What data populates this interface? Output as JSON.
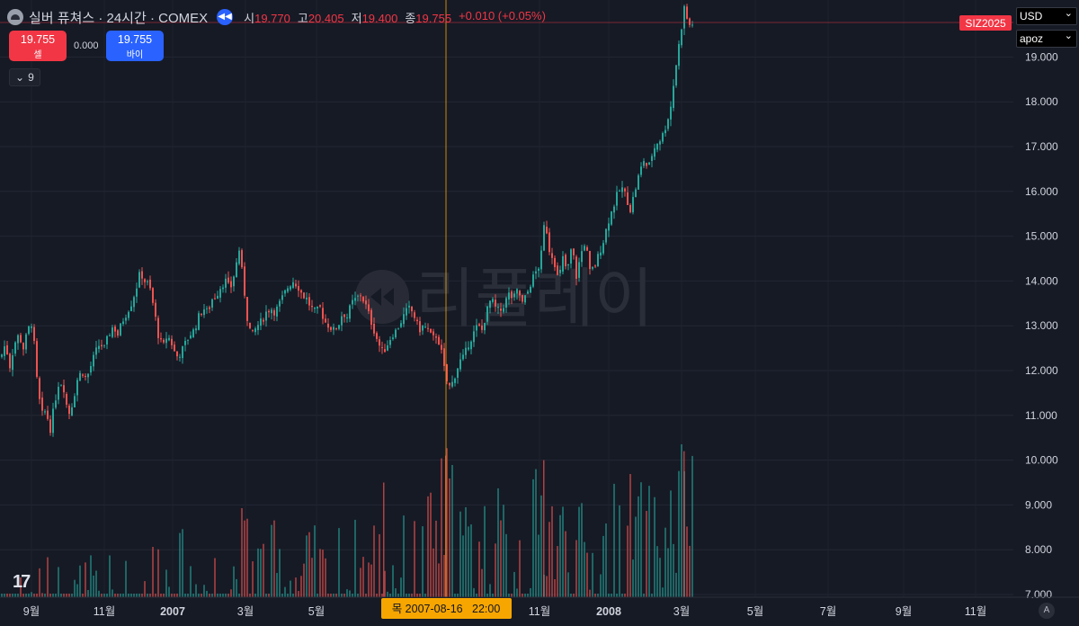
{
  "header": {
    "title": "실버 퓨쳐스 · 24시간 · COMEX",
    "ohlc": [
      {
        "key": "시",
        "value": "19.770"
      },
      {
        "key": "고",
        "value": "20.405"
      },
      {
        "key": "저",
        "value": "19.400"
      },
      {
        "key": "종",
        "value": "19.755"
      }
    ],
    "change": "+0.010 (+0.05%)"
  },
  "trade": {
    "sell_price": "19.755",
    "sell_label": "셀",
    "buy_price": "19.755",
    "buy_label": "바이",
    "spread": "0.000"
  },
  "indicator_toggle": "9",
  "currency_select": "USD",
  "scale_select": "apoz",
  "watermark": "리플레이",
  "auto_button": "A",
  "colors": {
    "up": "#26a69a",
    "down": "#ef5350",
    "bg": "#161a25",
    "crosshair": "#f7a600",
    "accent": "#2962ff"
  },
  "chart_data": {
    "type": "candlestick",
    "y_axis_ticks": [
      "7.000",
      "8.000",
      "9.000",
      "10.000",
      "11.000",
      "12.000",
      "13.000",
      "14.000",
      "15.000",
      "16.000",
      "17.000",
      "18.000",
      "19.000"
    ],
    "ylim": [
      6.8,
      20.3
    ],
    "x_axis_ticks": [
      {
        "label": "9월",
        "bold": false
      },
      {
        "label": "11월",
        "bold": false
      },
      {
        "label": "2007",
        "bold": true
      },
      {
        "label": "3월",
        "bold": false
      },
      {
        "label": "5월",
        "bold": false
      },
      {
        "label": "11월",
        "bold": false
      },
      {
        "label": "2008",
        "bold": true
      },
      {
        "label": "3월",
        "bold": false
      },
      {
        "label": "5월",
        "bold": false
      },
      {
        "label": "7월",
        "bold": false
      },
      {
        "label": "9월",
        "bold": false
      },
      {
        "label": "11월",
        "bold": false
      }
    ],
    "crosshair_date": "목 2007-08-16   22:00",
    "price_tag": "SIZ2025",
    "close_series": [
      [
        0,
        12.3
      ],
      [
        5,
        12.6
      ],
      [
        10,
        12.1
      ],
      [
        15,
        12.6
      ],
      [
        20,
        12.8
      ],
      [
        25,
        12.5
      ],
      [
        30,
        12.9
      ],
      [
        35,
        13.1
      ],
      [
        40,
        11.8
      ],
      [
        45,
        11.0
      ],
      [
        50,
        11.1
      ],
      [
        55,
        10.7
      ],
      [
        60,
        11.3
      ],
      [
        65,
        11.8
      ],
      [
        70,
        11.6
      ],
      [
        75,
        11.0
      ],
      [
        80,
        11.3
      ],
      [
        85,
        11.8
      ],
      [
        90,
        12.0
      ],
      [
        95,
        11.8
      ],
      [
        100,
        12.1
      ],
      [
        105,
        12.4
      ],
      [
        110,
        12.6
      ],
      [
        115,
        12.5
      ],
      [
        120,
        12.8
      ],
      [
        125,
        13.0
      ],
      [
        130,
        12.8
      ],
      [
        135,
        13.1
      ],
      [
        140,
        13.3
      ],
      [
        145,
        13.5
      ],
      [
        150,
        13.8
      ],
      [
        155,
        14.2
      ],
      [
        160,
        14.0
      ],
      [
        165,
        13.9
      ],
      [
        170,
        13.4
      ],
      [
        175,
        12.8
      ],
      [
        180,
        12.5
      ],
      [
        185,
        12.8
      ],
      [
        190,
        12.6
      ],
      [
        195,
        12.3
      ],
      [
        200,
        12.4
      ],
      [
        205,
        12.6
      ],
      [
        210,
        12.8
      ],
      [
        215,
        12.9
      ],
      [
        220,
        13.2
      ],
      [
        225,
        13.4
      ],
      [
        230,
        13.3
      ],
      [
        235,
        13.6
      ],
      [
        240,
        13.7
      ],
      [
        245,
        13.9
      ],
      [
        250,
        14.0
      ],
      [
        255,
        13.8
      ],
      [
        260,
        14.2
      ],
      [
        265,
        14.7
      ],
      [
        270,
        13.9
      ],
      [
        275,
        13.0
      ],
      [
        280,
        12.8
      ],
      [
        285,
        13.0
      ],
      [
        290,
        13.1
      ],
      [
        295,
        13.3
      ],
      [
        300,
        13.4
      ],
      [
        305,
        13.3
      ],
      [
        310,
        13.5
      ],
      [
        315,
        13.7
      ],
      [
        320,
        13.9
      ],
      [
        325,
        14.0
      ],
      [
        330,
        13.9
      ],
      [
        335,
        13.7
      ],
      [
        340,
        13.6
      ],
      [
        345,
        13.4
      ],
      [
        350,
        13.3
      ],
      [
        355,
        13.4
      ],
      [
        360,
        13.1
      ],
      [
        365,
        13.0
      ],
      [
        370,
        12.9
      ],
      [
        375,
        13.0
      ],
      [
        380,
        13.3
      ],
      [
        385,
        13.2
      ],
      [
        390,
        13.5
      ],
      [
        395,
        13.6
      ],
      [
        400,
        13.7
      ],
      [
        405,
        13.5
      ],
      [
        410,
        13.2
      ],
      [
        415,
        12.9
      ],
      [
        420,
        12.6
      ],
      [
        425,
        12.4
      ],
      [
        430,
        12.6
      ],
      [
        435,
        12.8
      ],
      [
        440,
        12.9
      ],
      [
        445,
        13.1
      ],
      [
        450,
        13.3
      ],
      [
        455,
        13.4
      ],
      [
        460,
        13.2
      ],
      [
        465,
        12.9
      ],
      [
        470,
        13.0
      ],
      [
        475,
        12.9
      ],
      [
        480,
        12.7
      ],
      [
        485,
        12.8
      ],
      [
        490,
        12.4
      ],
      [
        495,
        11.8
      ],
      [
        500,
        11.6
      ],
      [
        505,
        11.9
      ],
      [
        510,
        12.2
      ],
      [
        515,
        12.3
      ],
      [
        520,
        12.6
      ],
      [
        525,
        12.8
      ],
      [
        530,
        13.0
      ],
      [
        535,
        12.9
      ],
      [
        540,
        13.3
      ],
      [
        545,
        13.6
      ],
      [
        550,
        13.4
      ],
      [
        555,
        13.3
      ],
      [
        560,
        13.5
      ],
      [
        565,
        13.7
      ],
      [
        570,
        13.6
      ],
      [
        575,
        13.8
      ],
      [
        580,
        13.5
      ],
      [
        585,
        13.7
      ],
      [
        590,
        14.0
      ],
      [
        595,
        14.2
      ],
      [
        600,
        14.4
      ],
      [
        605,
        15.4
      ],
      [
        610,
        14.7
      ],
      [
        615,
        14.5
      ],
      [
        620,
        14.0
      ],
      [
        625,
        14.5
      ],
      [
        630,
        14.2
      ],
      [
        635,
        14.8
      ],
      [
        640,
        14.1
      ],
      [
        645,
        14.6
      ],
      [
        650,
        14.9
      ],
      [
        655,
        14.2
      ],
      [
        660,
        14.3
      ],
      [
        665,
        14.6
      ],
      [
        670,
        14.9
      ],
      [
        675,
        15.3
      ],
      [
        680,
        15.6
      ],
      [
        685,
        15.9
      ],
      [
        690,
        16.1
      ],
      [
        695,
        15.9
      ],
      [
        700,
        15.6
      ],
      [
        705,
        16.0
      ],
      [
        710,
        16.4
      ],
      [
        715,
        16.7
      ],
      [
        720,
        16.5
      ],
      [
        725,
        16.9
      ],
      [
        730,
        17.1
      ],
      [
        735,
        17.2
      ],
      [
        740,
        17.5
      ],
      [
        745,
        17.9
      ],
      [
        750,
        18.7
      ],
      [
        755,
        19.4
      ],
      [
        760,
        20.1
      ],
      [
        765,
        19.7
      ],
      [
        769,
        19.75
      ]
    ],
    "volume_series": [
      [
        0,
        7.25
      ],
      [
        40,
        7.22
      ],
      [
        80,
        7.22
      ],
      [
        120,
        7.25
      ],
      [
        155,
        7.3
      ],
      [
        160,
        7.55
      ],
      [
        175,
        7.9
      ],
      [
        200,
        7.7
      ],
      [
        250,
        7.8
      ],
      [
        270,
        8.3
      ],
      [
        300,
        7.9
      ],
      [
        330,
        7.95
      ],
      [
        360,
        7.75
      ],
      [
        400,
        8.0
      ],
      [
        420,
        8.3
      ],
      [
        450,
        8.0
      ],
      [
        470,
        8.2
      ],
      [
        495,
        9.6
      ],
      [
        520,
        8.4
      ],
      [
        540,
        8.7
      ],
      [
        560,
        8.5
      ],
      [
        585,
        8.6
      ],
      [
        600,
        9.2
      ],
      [
        605,
        9.5
      ],
      [
        620,
        8.8
      ],
      [
        650,
        8.2
      ],
      [
        680,
        8.7
      ],
      [
        700,
        9.0
      ],
      [
        720,
        8.6
      ],
      [
        740,
        8.8
      ],
      [
        755,
        9.5
      ],
      [
        762,
        10.2
      ],
      [
        769,
        9.2
      ]
    ]
  }
}
